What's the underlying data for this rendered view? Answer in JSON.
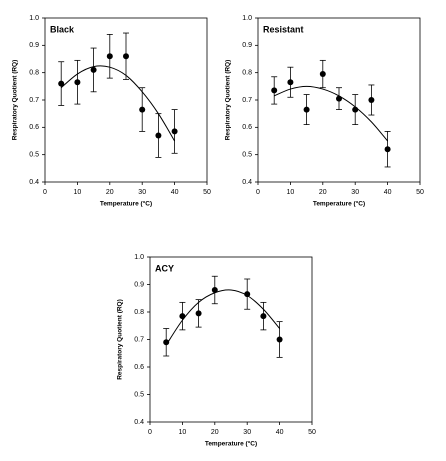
{
  "chart_data": [
    {
      "type": "scatter",
      "title": "Black",
      "xlabel": "Temperature (°C)",
      "ylabel": "Respiratory Quotient (RQ)",
      "x": [
        5,
        10,
        15,
        20,
        25,
        30,
        35,
        40
      ],
      "values": [
        0.76,
        0.765,
        0.81,
        0.86,
        0.86,
        0.665,
        0.57,
        0.585
      ],
      "errors": [
        0.08,
        0.08,
        0.08,
        0.08,
        0.085,
        0.08,
        0.08,
        0.08
      ],
      "curve": {
        "x": [
          5,
          10,
          15,
          20,
          25,
          30,
          35,
          40
        ],
        "y": [
          0.745,
          0.795,
          0.822,
          0.82,
          0.79,
          0.73,
          0.65,
          0.55
        ]
      },
      "xlim": [
        0,
        50
      ],
      "ylim": [
        0.4,
        1.0
      ],
      "xticks": [
        0,
        10,
        20,
        30,
        40,
        50
      ],
      "yticks": [
        0.4,
        0.5,
        0.6,
        0.7,
        0.8,
        0.9,
        {
          "value": 1.0,
          "label": "1.0"
        }
      ],
      "color": "#000000"
    },
    {
      "type": "scatter",
      "title": "Resistant",
      "xlabel": "Temperature (°C)",
      "ylabel": "Respiratory Quotient (RQ)",
      "x": [
        5,
        10,
        15,
        20,
        25,
        30,
        35,
        40
      ],
      "values": [
        0.735,
        0.765,
        0.665,
        0.795,
        0.705,
        0.665,
        0.7,
        0.52
      ],
      "errors": [
        0.05,
        0.055,
        0.055,
        0.05,
        0.04,
        0.055,
        0.055,
        0.065
      ],
      "curve": {
        "x": [
          5,
          10,
          15,
          20,
          25,
          30,
          35,
          40
        ],
        "y": [
          0.715,
          0.74,
          0.75,
          0.74,
          0.715,
          0.675,
          0.62,
          0.55
        ]
      },
      "xlim": [
        0,
        50
      ],
      "ylim": [
        0.4,
        1.0
      ],
      "xticks": [
        0,
        10,
        20,
        30,
        40,
        50
      ],
      "yticks": [
        0.4,
        0.5,
        0.6,
        0.7,
        0.8,
        0.9,
        {
          "value": 1.0,
          "label": "1.0"
        }
      ],
      "color": "#000000"
    },
    {
      "type": "scatter",
      "title": "ACY",
      "xlabel": "Temperature (°C)",
      "ylabel": "Respiratory Quotient (RQ)",
      "x": [
        5,
        10,
        15,
        20,
        30,
        35,
        40
      ],
      "values": [
        0.69,
        0.785,
        0.795,
        0.88,
        0.865,
        0.785,
        0.7
      ],
      "errors": [
        0.05,
        0.05,
        0.05,
        0.05,
        0.055,
        0.05,
        0.065
      ],
      "curve": {
        "x": [
          5,
          10,
          15,
          20,
          25,
          30,
          35,
          40
        ],
        "y": [
          0.68,
          0.77,
          0.835,
          0.87,
          0.88,
          0.86,
          0.81,
          0.74
        ]
      },
      "xlim": [
        0,
        50
      ],
      "ylim": [
        0.4,
        1.0
      ],
      "xticks": [
        0,
        10,
        20,
        30,
        40,
        50
      ],
      "yticks": [
        0.4,
        0.5,
        0.6,
        0.7,
        0.8,
        0.9,
        {
          "value": 1.0,
          "label": "1.0"
        }
      ],
      "color": "#000000"
    }
  ]
}
